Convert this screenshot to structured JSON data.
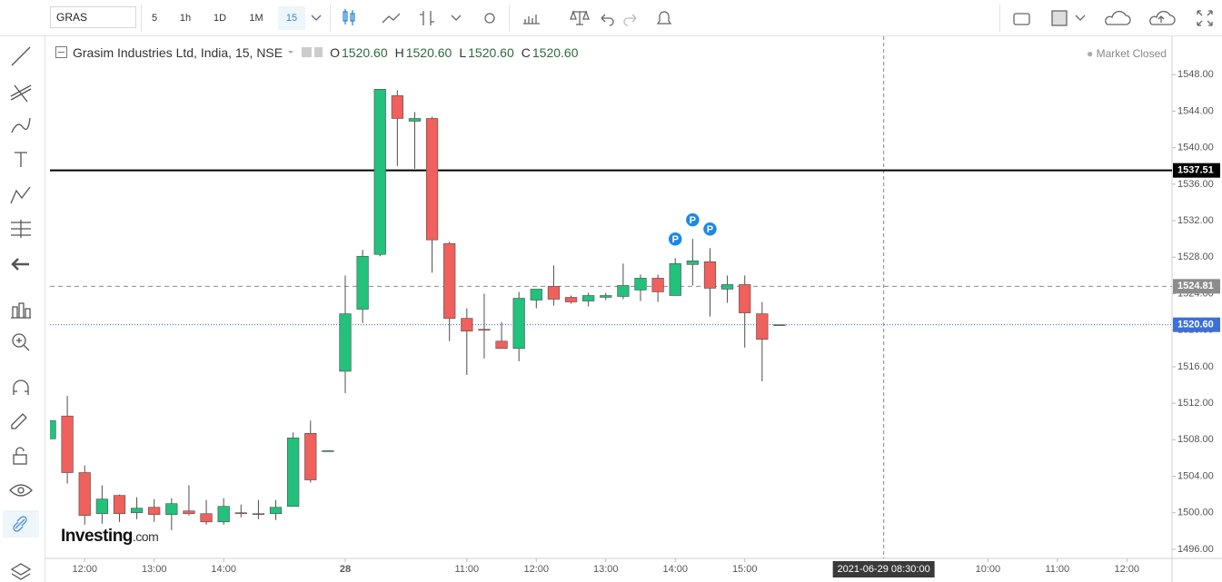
{
  "toolbar": {
    "symbol": "GRAS",
    "intervals": [
      "5",
      "1h",
      "1D",
      "1M",
      "15"
    ]
  },
  "chart_data": {
    "type": "candlestick",
    "title": "Grasim Industries Ltd, India, 15, NSE",
    "legend": [
      {
        "label": "O",
        "value": "1520.60"
      },
      {
        "label": "H",
        "value": "1520.60"
      },
      {
        "label": "L",
        "value": "1520.60"
      },
      {
        "label": "C",
        "value": "1520.60"
      }
    ],
    "status": "Market Closed",
    "watermark": {
      "brand": "Investing",
      "suffix": ".com"
    },
    "open": [
      1508.1,
      1510.6,
      1504.4,
      1499.9,
      1501.9,
      1500.0,
      1500.6,
      1499.8,
      1500.2,
      1499.9,
      1499.0,
      1500.0,
      1499.9,
      1499.9,
      1500.7,
      1508.7,
      1506.8,
      1515.5,
      1522.3,
      1528.3,
      1545.7,
      1542.9,
      1543.2,
      1529.5,
      1521.3,
      1520.1,
      1518.8,
      1518.0,
      1523.3,
      1524.8,
      1523.6,
      1523.2,
      1523.6,
      1523.7,
      1524.4,
      1525.7,
      1523.8,
      1527.2,
      1527.5,
      1524.5,
      1525.0,
      1521.8,
      1520.6
    ],
    "high": [
      1510.1,
      1512.8,
      1505.2,
      1503.0,
      1502.0,
      1501.7,
      1501.5,
      1501.6,
      1503.0,
      1501.4,
      1501.6,
      1500.9,
      1501.4,
      1501.4,
      1508.8,
      1510.1,
      1506.8,
      1526.0,
      1528.8,
      1546.4,
      1546.3,
      1543.9,
      1543.4,
      1529.7,
      1522.4,
      1524.0,
      1520.9,
      1524.2,
      1524.5,
      1527.1,
      1523.8,
      1524.1,
      1524.1,
      1527.3,
      1526.1,
      1526.1,
      1527.9,
      1530.0,
      1529.0,
      1526.0,
      1526.0,
      1523.1,
      1520.6
    ],
    "low": [
      1508.1,
      1503.2,
      1498.7,
      1498.8,
      1499.0,
      1499.3,
      1499.0,
      1498.1,
      1499.7,
      1498.7,
      1498.7,
      1499.5,
      1499.3,
      1499.2,
      1500.7,
      1503.3,
      1506.8,
      1513.1,
      1520.8,
      1528.1,
      1538.0,
      1537.7,
      1526.3,
      1518.8,
      1515.1,
      1516.9,
      1518.0,
      1516.6,
      1522.4,
      1522.7,
      1522.9,
      1522.6,
      1523.3,
      1523.4,
      1523.2,
      1523.1,
      1523.8,
      1524.9,
      1521.5,
      1523.0,
      1518.1,
      1514.4,
      1520.6
    ],
    "close": [
      1510.1,
      1504.4,
      1499.7,
      1501.5,
      1499.9,
      1500.5,
      1499.8,
      1501.0,
      1499.9,
      1499.0,
      1500.7,
      1499.9,
      1499.8,
      1500.6,
      1508.2,
      1503.6,
      1506.8,
      1521.8,
      1528.1,
      1546.4,
      1543.2,
      1543.2,
      1529.9,
      1521.3,
      1519.9,
      1520.0,
      1518.0,
      1523.5,
      1524.5,
      1523.4,
      1523.1,
      1523.8,
      1523.8,
      1524.9,
      1525.7,
      1524.2,
      1527.3,
      1527.6,
      1524.6,
      1525.0,
      1521.9,
      1519.0,
      1520.6
    ],
    "up_color": "#22c17c",
    "down_color": "#f0605c",
    "wick_color": "#4d4d4d",
    "xlim": [
      0,
      64.6
    ],
    "xticks": [
      {
        "value": 2,
        "label": "12:00"
      },
      {
        "value": 6,
        "label": "13:00"
      },
      {
        "value": 10,
        "label": "14:00"
      },
      {
        "value": 17,
        "label": "28"
      },
      {
        "value": 24,
        "label": "11:00"
      },
      {
        "value": 28,
        "label": "12:00"
      },
      {
        "value": 32,
        "label": "13:00"
      },
      {
        "value": 36,
        "label": "14:00"
      },
      {
        "value": 40,
        "label": "15:00"
      },
      {
        "value": 54,
        "label": "10:00"
      },
      {
        "value": 58,
        "label": "11:00"
      },
      {
        "value": 62,
        "label": "12:00"
      }
    ],
    "ylim": [
      1495,
      1552.2
    ],
    "yticks": [
      {
        "value": 1496,
        "label": "1496.00"
      },
      {
        "value": 1500,
        "label": "1500.00"
      },
      {
        "value": 1504,
        "label": "1504.00"
      },
      {
        "value": 1508,
        "label": "1508.00"
      },
      {
        "value": 1512,
        "label": "1512.00"
      },
      {
        "value": 1516,
        "label": "1516.00"
      },
      {
        "value": 1520,
        "label": "1520.00"
      },
      {
        "value": 1524,
        "label": "1524.00"
      },
      {
        "value": 1528,
        "label": "1528.00"
      },
      {
        "value": 1532,
        "label": "1532.00"
      },
      {
        "value": 1536,
        "label": "1536.00"
      },
      {
        "value": 1540,
        "label": "1540.00"
      },
      {
        "value": 1544,
        "label": "1544.00"
      },
      {
        "value": 1548,
        "label": "1548.00"
      }
    ],
    "hlines": [
      {
        "value": 1537.51,
        "label": "1537.51",
        "color": "#000000",
        "style": "solid"
      },
      {
        "value": 1524.81,
        "label": "1524.81",
        "color": "#8c8c8c",
        "style": "dashed"
      },
      {
        "value": 1520.6,
        "label": "1520.60",
        "color": "#3d6fd9",
        "style": "dotted"
      }
    ],
    "crosshair": {
      "x": 48,
      "label": "2021-06-29 08:30:00"
    },
    "events": [
      {
        "x": 36,
        "label": "P"
      },
      {
        "x": 37,
        "label": "P"
      },
      {
        "x": 38,
        "label": "P"
      }
    ]
  }
}
